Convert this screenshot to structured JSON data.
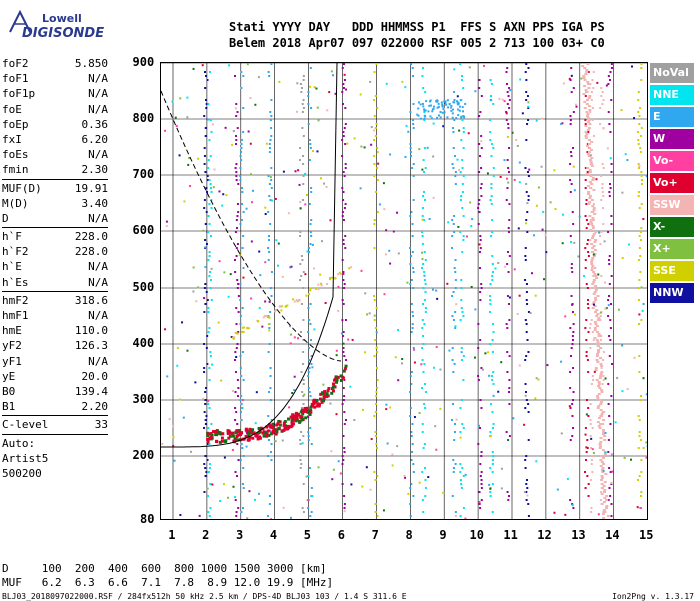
{
  "logo": {
    "brand1": "Lowell",
    "brand2": "DIGISONDE"
  },
  "header": {
    "line1": "Stati YYYY DAY   DDD HHMMSS P1  FFS S AXN PPS IGA PS",
    "line2": "Belem 2018 Apr07 097 022000 RSF 005 2 713 100 03+ C0"
  },
  "params": [
    [
      [
        "foF2",
        "5.850"
      ],
      [
        "foF1",
        "N/A"
      ],
      [
        "foF1p",
        "N/A"
      ],
      [
        "foE",
        "N/A"
      ],
      [
        "foEp",
        "0.36"
      ],
      [
        "fxI",
        "6.20"
      ],
      [
        "foEs",
        "N/A"
      ],
      [
        "fmin",
        "2.30"
      ]
    ],
    [
      [
        "MUF(D)",
        "19.91"
      ],
      [
        "M(D)",
        "3.40"
      ],
      [
        "D",
        "N/A"
      ]
    ],
    [
      [
        "h`F",
        "228.0"
      ],
      [
        "h`F2",
        "228.0"
      ],
      [
        "h`E",
        "N/A"
      ],
      [
        "h`Es",
        "N/A"
      ]
    ],
    [
      [
        "hmF2",
        "318.6"
      ],
      [
        "hmF1",
        "N/A"
      ],
      [
        "hmE",
        "110.0"
      ],
      [
        "yF2",
        "126.3"
      ],
      [
        "yF1",
        "N/A"
      ],
      [
        "yE",
        "20.0"
      ],
      [
        "B0",
        "139.4"
      ],
      [
        "B1",
        "2.20"
      ]
    ],
    [
      [
        "C-level",
        "33"
      ]
    ]
  ],
  "auto": {
    "l1": "Auto:",
    "l2": "Artist5",
    "l3": "500200"
  },
  "yticks": [
    "900",
    "800",
    "700",
    "600",
    "500",
    "400",
    "300",
    "200",
    "80"
  ],
  "xticks": [
    "1",
    "2",
    "3",
    "4",
    "5",
    "6",
    "7",
    "8",
    "9",
    "10",
    "11",
    "12",
    "13",
    "14",
    "15"
  ],
  "legend": [
    {
      "label": "NoVal",
      "color": "#a0a0a0"
    },
    {
      "label": "NNE",
      "color": "#00e5ee"
    },
    {
      "label": "E",
      "color": "#30a8f0"
    },
    {
      "label": "W",
      "color": "#a000a0"
    },
    {
      "label": "Vo-",
      "color": "#ff40a0"
    },
    {
      "label": "Vo+",
      "color": "#e00030"
    },
    {
      "label": "SSW",
      "color": "#f4b4b4"
    },
    {
      "label": "X-",
      "color": "#107010"
    },
    {
      "label": "X+",
      "color": "#80c040"
    },
    {
      "label": "SSE",
      "color": "#d0d000"
    },
    {
      "label": "NNW",
      "color": "#1010a0"
    }
  ],
  "footer": {
    "d": "D     100  200  400  600  800 1000 1500 3000 [km]",
    "muf": "MUF   6.2  6.3  6.6  7.1  7.8  8.9 12.0 19.9 [MHz]",
    "file": "BLJ03_2018097022000.RSF / 284fx512h 50 kHz 2.5 km / DPS-4D BLJ03 103 / 1.4 S 311.6 E",
    "version": "Ion2Png v. 1.3.17"
  }
}
